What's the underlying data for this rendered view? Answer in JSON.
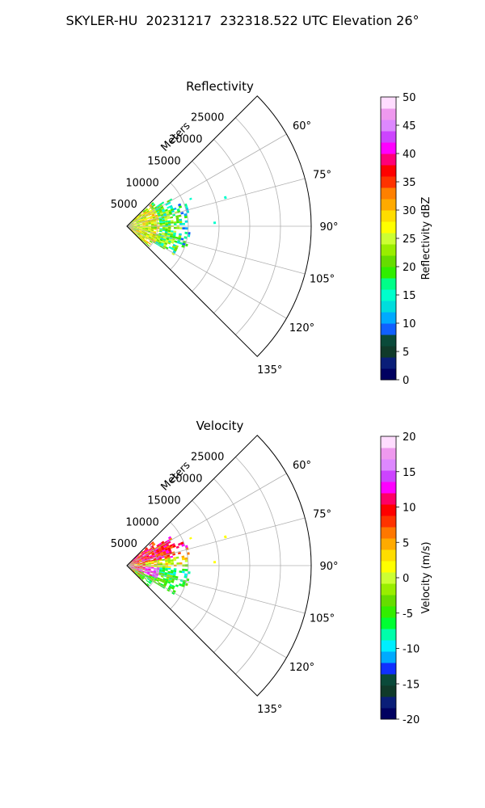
{
  "figure_title": "SKYLER-HU  20231217  232318.522 UTC Elevation 26°",
  "colors": {
    "reflectivity_scale": [
      "#000060",
      "#0a1e78",
      "#103a2a",
      "#0a4a3a",
      "#1060ff",
      "#00aaff",
      "#00dddd",
      "#00ffcc",
      "#00ff88",
      "#30ee00",
      "#66dd00",
      "#99ee00",
      "#ccff33",
      "#ffff00",
      "#ffdd00",
      "#ffaa00",
      "#ff8000",
      "#ff3300",
      "#ff0000",
      "#ff0077",
      "#ff00ff",
      "#cc44ff",
      "#dd88ff",
      "#ee99ee",
      "#ffddff"
    ],
    "velocity_scale": [
      "#000060",
      "#0a1e78",
      "#103a2a",
      "#0a4a3a",
      "#1030ff",
      "#00aaff",
      "#00eeff",
      "#00ffaa",
      "#00ff33",
      "#33ee00",
      "#66dd00",
      "#99ee00",
      "#ccff33",
      "#ffff00",
      "#ffdd00",
      "#ffaa00",
      "#ff7700",
      "#ff3300",
      "#ff0000",
      "#ff0066",
      "#ff00ff",
      "#cc44ff",
      "#dd88ff",
      "#ee99ee",
      "#ffddff"
    ]
  },
  "chart_data": [
    {
      "type": "polar_ppi",
      "title": "Reflectivity",
      "range_label": "Meters",
      "radial_ticks": [
        5000,
        10000,
        15000,
        20000,
        25000
      ],
      "angular_ticks": [
        "60°",
        "75°",
        "90°",
        "105°",
        "120°",
        "135°"
      ],
      "theta_range_deg": [
        45,
        135
      ],
      "r_max": 30000,
      "colorbar": {
        "label": "Reflectivity dBZ",
        "min": 0,
        "max": 50,
        "ticks": [
          0,
          5,
          10,
          15,
          20,
          25,
          30,
          35,
          40,
          45,
          50
        ]
      },
      "echo_extent_m": 10000
    },
    {
      "type": "polar_ppi",
      "title": "Velocity",
      "range_label": "Meters",
      "radial_ticks": [
        5000,
        10000,
        15000,
        20000,
        25000
      ],
      "angular_ticks": [
        "60°",
        "75°",
        "90°",
        "105°",
        "120°",
        "135°"
      ],
      "theta_range_deg": [
        45,
        135
      ],
      "r_max": 30000,
      "colorbar": {
        "label": "Velocity (m/s)",
        "min": -20,
        "max": 20,
        "ticks": [
          -20,
          -15,
          -10,
          -5,
          0,
          5,
          10,
          15,
          20
        ]
      },
      "echo_extent_m": 10000
    }
  ]
}
